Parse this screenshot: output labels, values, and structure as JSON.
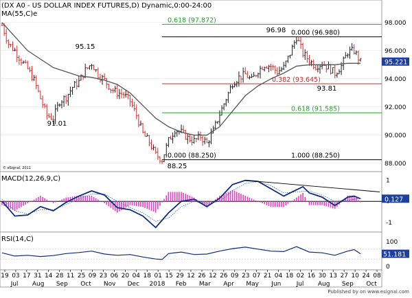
{
  "chart_data": [
    {
      "type": "ohlc",
      "title": "(DX A0 - US DOLLAR INDEX FUTURES,D) Dynamic,0:00-24:00",
      "ma_label": "MA(55,C)e",
      "copyright": "© eSignal, 2011",
      "ylim": [
        87.5,
        99.5
      ],
      "yticks": [
        88,
        90,
        92,
        94,
        96,
        98
      ],
      "ytick_labels": [
        "88.000",
        "90.000",
        "92.000",
        "94.000",
        "96.000",
        "98.000"
      ],
      "last_value": 95.221,
      "last_label": "95.221",
      "fib_levels": [
        {
          "label": "0.618 (97.872)",
          "value": 97.872,
          "color": "#2aa02a"
        },
        {
          "label": "0.000 (96.980)",
          "value": 96.98,
          "color": "#000000"
        },
        {
          "label": "0.382 (93.645)",
          "value": 93.645,
          "color": "#c03030"
        },
        {
          "label": "0.618 (91.585)",
          "value": 91.585,
          "color": "#2aa02a"
        },
        {
          "label": "0.000 (88.250)",
          "value": 88.25,
          "color": "#000000"
        },
        {
          "label": "1.000 (88.250)",
          "value": 88.25,
          "color": "#000000"
        }
      ],
      "annotations": [
        {
          "text": "95.15",
          "value": 95.15
        },
        {
          "text": "91.01",
          "value": 91.01
        },
        {
          "text": "96.98",
          "value": 96.98
        },
        {
          "text": "93.81",
          "value": 93.81
        },
        {
          "text": "88.25",
          "value": 88.25
        }
      ],
      "price_path": [
        [
          0,
          97.8
        ],
        [
          3,
          96.5
        ],
        [
          6,
          96.0
        ],
        [
          9,
          95.3
        ],
        [
          12,
          94.7
        ],
        [
          15,
          93.9
        ],
        [
          18,
          92.6
        ],
        [
          21,
          91.4
        ],
        [
          24,
          91.2
        ],
        [
          27,
          92.4
        ],
        [
          30,
          92.7
        ],
        [
          33,
          93.4
        ],
        [
          36,
          93.8
        ],
        [
          39,
          94.6
        ],
        [
          42,
          95.1
        ],
        [
          45,
          94.3
        ],
        [
          48,
          93.9
        ],
        [
          51,
          93.3
        ],
        [
          54,
          93.0
        ],
        [
          57,
          92.9
        ],
        [
          60,
          92.4
        ],
        [
          63,
          91.4
        ],
        [
          66,
          90.1
        ],
        [
          69,
          89.5
        ],
        [
          72,
          88.6
        ],
        [
          75,
          88.25
        ],
        [
          78,
          89.6
        ],
        [
          81,
          90.4
        ],
        [
          84,
          90.2
        ],
        [
          87,
          89.8
        ],
        [
          90,
          89.6
        ],
        [
          93,
          89.9
        ],
        [
          96,
          89.4
        ],
        [
          99,
          90.3
        ],
        [
          102,
          91.5
        ],
        [
          105,
          92.6
        ],
        [
          108,
          93.7
        ],
        [
          111,
          94.1
        ],
        [
          114,
          94.3
        ],
        [
          117,
          93.9
        ],
        [
          120,
          94.6
        ],
        [
          123,
          95.0
        ],
        [
          126,
          94.9
        ],
        [
          129,
          94.5
        ],
        [
          132,
          94.8
        ],
        [
          135,
          95.8
        ],
        [
          138,
          96.98
        ],
        [
          141,
          95.8
        ],
        [
          144,
          95.3
        ],
        [
          147,
          94.9
        ],
        [
          150,
          95.1
        ],
        [
          153,
          94.8
        ],
        [
          156,
          94.4
        ],
        [
          159,
          94.9
        ],
        [
          162,
          95.9
        ],
        [
          165,
          96.0
        ],
        [
          168,
          95.2
        ]
      ],
      "ma_path": [
        [
          0,
          98.0
        ],
        [
          12,
          96.0
        ],
        [
          24,
          94.8
        ],
        [
          36,
          94.2
        ],
        [
          42,
          94.1
        ],
        [
          48,
          93.9
        ],
        [
          54,
          93.6
        ],
        [
          60,
          93.0
        ],
        [
          66,
          92.1
        ],
        [
          72,
          91.2
        ],
        [
          78,
          90.6
        ],
        [
          84,
          90.2
        ],
        [
          90,
          90.0
        ],
        [
          96,
          90.0
        ],
        [
          102,
          90.6
        ],
        [
          108,
          91.7
        ],
        [
          114,
          92.8
        ],
        [
          120,
          93.5
        ],
        [
          126,
          94.0
        ],
        [
          132,
          94.4
        ],
        [
          138,
          94.9
        ],
        [
          144,
          95.0
        ],
        [
          150,
          95.0
        ],
        [
          156,
          95.0
        ],
        [
          162,
          95.1
        ],
        [
          168,
          95.1
        ]
      ]
    },
    {
      "type": "line",
      "title": "MACD(12,26,9,C)",
      "ylim": [
        -1.4,
        1.35
      ],
      "yticks": [
        1,
        -1
      ],
      "ytick_labels": [
        "1",
        "-1"
      ],
      "zero_label": "0",
      "last_value": 0.127,
      "last_label": "0.127",
      "macd_path": [
        [
          0,
          0.0
        ],
        [
          6,
          -0.7
        ],
        [
          12,
          -0.65
        ],
        [
          18,
          -0.25
        ],
        [
          24,
          -0.45
        ],
        [
          30,
          -0.05
        ],
        [
          36,
          0.25
        ],
        [
          42,
          0.5
        ],
        [
          48,
          0.3
        ],
        [
          54,
          -0.3
        ],
        [
          60,
          -0.4
        ],
        [
          66,
          -0.7
        ],
        [
          72,
          -1.25
        ],
        [
          78,
          -0.55
        ],
        [
          84,
          0.0
        ],
        [
          90,
          0.1
        ],
        [
          96,
          -0.25
        ],
        [
          102,
          0.15
        ],
        [
          108,
          0.8
        ],
        [
          114,
          1.0
        ],
        [
          120,
          0.95
        ],
        [
          126,
          0.6
        ],
        [
          132,
          0.25
        ],
        [
          138,
          0.55
        ],
        [
          141,
          0.7
        ],
        [
          144,
          0.4
        ],
        [
          150,
          0.2
        ],
        [
          156,
          -0.2
        ],
        [
          162,
          0.2
        ],
        [
          165,
          0.25
        ],
        [
          168,
          0.127
        ]
      ],
      "signal_path": [
        [
          0,
          0.1
        ],
        [
          6,
          -0.45
        ],
        [
          12,
          -0.6
        ],
        [
          18,
          -0.4
        ],
        [
          24,
          -0.4
        ],
        [
          30,
          -0.15
        ],
        [
          36,
          0.1
        ],
        [
          42,
          0.35
        ],
        [
          48,
          0.35
        ],
        [
          54,
          0.0
        ],
        [
          60,
          -0.3
        ],
        [
          66,
          -0.55
        ],
        [
          72,
          -0.95
        ],
        [
          78,
          -0.8
        ],
        [
          84,
          -0.25
        ],
        [
          90,
          0.0
        ],
        [
          96,
          -0.1
        ],
        [
          102,
          0.0
        ],
        [
          108,
          0.5
        ],
        [
          114,
          0.85
        ],
        [
          120,
          0.95
        ],
        [
          126,
          0.75
        ],
        [
          132,
          0.4
        ],
        [
          138,
          0.45
        ],
        [
          144,
          0.5
        ],
        [
          150,
          0.3
        ],
        [
          156,
          0.0
        ],
        [
          162,
          0.05
        ],
        [
          168,
          0.15
        ]
      ],
      "trend_line": [
        [
          114,
          1.0
        ],
        [
          177,
          0.45
        ]
      ]
    },
    {
      "type": "line",
      "title": "RSI(14,C)",
      "ylim": [
        0,
        100
      ],
      "yticks": [
        100,
        0
      ],
      "ytick_labels": [
        "100",
        "0"
      ],
      "last_value": 51.181,
      "last_label": "51.181",
      "rsi_path": [
        [
          0,
          55
        ],
        [
          6,
          42
        ],
        [
          12,
          45
        ],
        [
          18,
          40
        ],
        [
          24,
          44
        ],
        [
          30,
          52
        ],
        [
          36,
          56
        ],
        [
          42,
          62
        ],
        [
          48,
          50
        ],
        [
          54,
          45
        ],
        [
          60,
          48
        ],
        [
          66,
          38
        ],
        [
          72,
          30
        ],
        [
          75,
          28
        ],
        [
          78,
          52
        ],
        [
          84,
          58
        ],
        [
          90,
          48
        ],
        [
          96,
          50
        ],
        [
          102,
          62
        ],
        [
          108,
          72
        ],
        [
          114,
          78
        ],
        [
          120,
          70
        ],
        [
          126,
          62
        ],
        [
          132,
          60
        ],
        [
          138,
          80
        ],
        [
          144,
          58
        ],
        [
          150,
          55
        ],
        [
          156,
          45
        ],
        [
          162,
          62
        ],
        [
          165,
          68
        ],
        [
          168,
          51
        ]
      ]
    }
  ],
  "x_axis": {
    "day_labels": [
      "19",
      "03",
      "17",
      "31",
      "14",
      "28",
      "11",
      "25",
      "09",
      "23",
      "06",
      "20",
      "04",
      "18",
      "01",
      "15",
      "29",
      "12",
      "26",
      "12",
      "26",
      "09",
      "23",
      "07",
      "21",
      "04",
      "18",
      "02",
      "16",
      "30",
      "13",
      "27",
      "10",
      "24",
      "08"
    ],
    "month_labels": [
      "Jul",
      "Aug",
      "Sep",
      "Oct",
      "Nov",
      "Dec",
      "2018",
      "Feb",
      "Mar",
      "Apr",
      "May",
      "Jun",
      "Jul",
      "Aug",
      "Sep",
      "Oct"
    ]
  },
  "footer": "Published by on www.esignal.com"
}
